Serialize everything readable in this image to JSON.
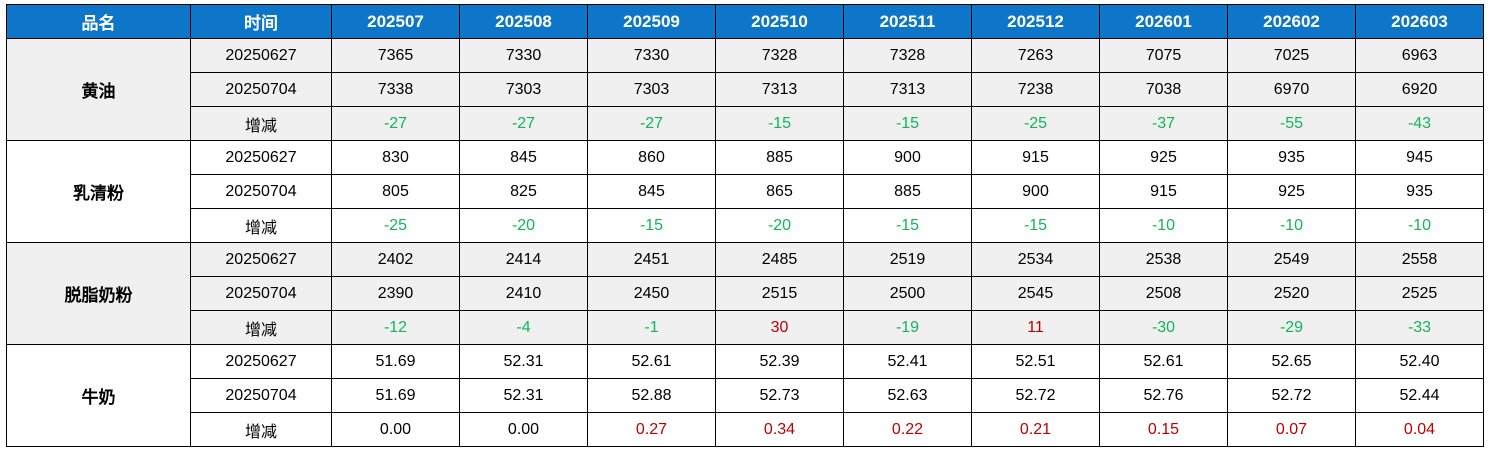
{
  "colors": {
    "header_bg": "#0D76C8",
    "header_fg": "#FFFFFF",
    "stripe_bg": "#F0F0F0",
    "negative": "#12B558",
    "positive": "#C00000"
  },
  "chart_data": {
    "type": "table",
    "columns": [
      "品名",
      "时间",
      "202507",
      "202508",
      "202509",
      "202510",
      "202511",
      "202512",
      "202601",
      "202602",
      "202603"
    ],
    "groups": [
      {
        "name": "黄油",
        "striped": true,
        "rows": [
          {
            "time": "20250627",
            "is_change": false,
            "values": [
              "7365",
              "7330",
              "7330",
              "7328",
              "7328",
              "7263",
              "7075",
              "7025",
              "6963"
            ]
          },
          {
            "time": "20250704",
            "is_change": false,
            "values": [
              "7338",
              "7303",
              "7303",
              "7313",
              "7313",
              "7238",
              "7038",
              "6970",
              "6920"
            ]
          },
          {
            "time": "增减",
            "is_change": true,
            "values": [
              "-27",
              "-27",
              "-27",
              "-15",
              "-15",
              "-25",
              "-37",
              "-55",
              "-43"
            ]
          }
        ]
      },
      {
        "name": "乳清粉",
        "striped": false,
        "rows": [
          {
            "time": "20250627",
            "is_change": false,
            "values": [
              "830",
              "845",
              "860",
              "885",
              "900",
              "915",
              "925",
              "935",
              "945"
            ]
          },
          {
            "time": "20250704",
            "is_change": false,
            "values": [
              "805",
              "825",
              "845",
              "865",
              "885",
              "900",
              "915",
              "925",
              "935"
            ]
          },
          {
            "time": "增减",
            "is_change": true,
            "values": [
              "-25",
              "-20",
              "-15",
              "-20",
              "-15",
              "-15",
              "-10",
              "-10",
              "-10"
            ]
          }
        ]
      },
      {
        "name": "脱脂奶粉",
        "striped": true,
        "rows": [
          {
            "time": "20250627",
            "is_change": false,
            "values": [
              "2402",
              "2414",
              "2451",
              "2485",
              "2519",
              "2534",
              "2538",
              "2549",
              "2558"
            ]
          },
          {
            "time": "20250704",
            "is_change": false,
            "values": [
              "2390",
              "2410",
              "2450",
              "2515",
              "2500",
              "2545",
              "2508",
              "2520",
              "2525"
            ]
          },
          {
            "time": "增减",
            "is_change": true,
            "values": [
              "-12",
              "-4",
              "-1",
              "30",
              "-19",
              "11",
              "-30",
              "-29",
              "-33"
            ]
          }
        ]
      },
      {
        "name": "牛奶",
        "striped": false,
        "rows": [
          {
            "time": "20250627",
            "is_change": false,
            "values": [
              "51.69",
              "52.31",
              "52.61",
              "52.39",
              "52.41",
              "52.51",
              "52.61",
              "52.65",
              "52.40"
            ]
          },
          {
            "time": "20250704",
            "is_change": false,
            "values": [
              "51.69",
              "52.31",
              "52.88",
              "52.73",
              "52.63",
              "52.72",
              "52.76",
              "52.72",
              "52.44"
            ]
          },
          {
            "time": "增减",
            "is_change": true,
            "values": [
              "0.00",
              "0.00",
              "0.27",
              "0.34",
              "0.22",
              "0.21",
              "0.15",
              "0.07",
              "0.04"
            ]
          }
        ]
      }
    ]
  }
}
